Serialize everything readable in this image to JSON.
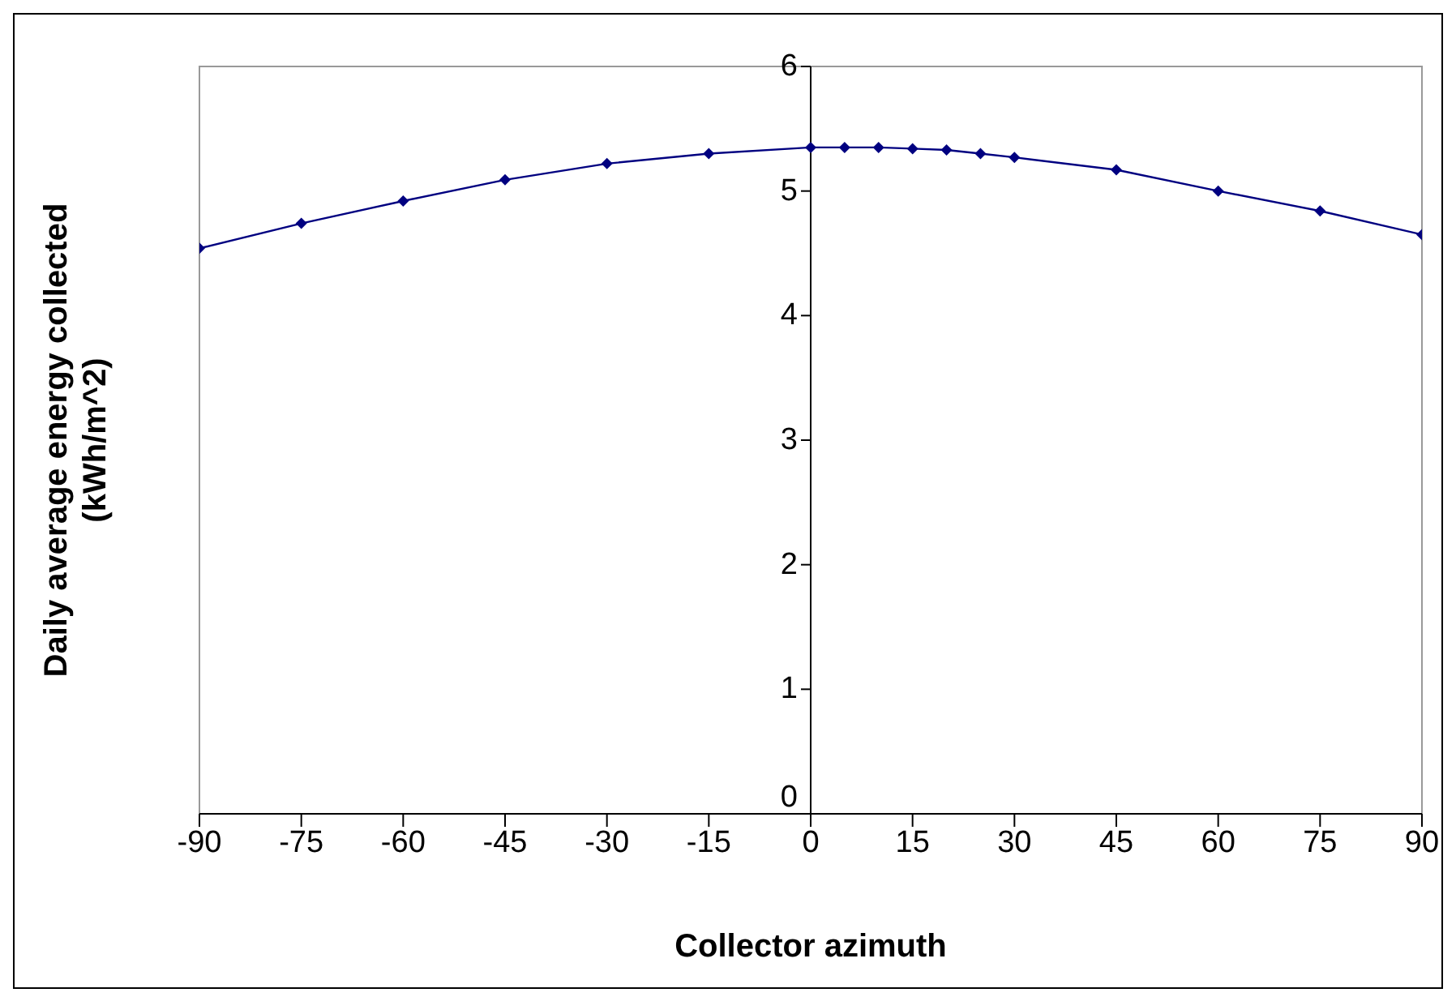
{
  "chart_data": {
    "type": "line",
    "xlabel": "Collector azimuth",
    "ylabel": "Daily average energy collected (kWh/m^2)",
    "x": [
      -90,
      -75,
      -60,
      -45,
      -30,
      -15,
      0,
      5,
      10,
      15,
      20,
      25,
      30,
      45,
      60,
      75,
      90
    ],
    "series": [
      {
        "color": "#000080",
        "values": [
          4.54,
          4.74,
          4.92,
          5.09,
          5.22,
          5.3,
          5.35,
          5.35,
          5.35,
          5.34,
          5.33,
          5.3,
          5.27,
          5.17,
          5.0,
          4.84,
          4.65
        ]
      }
    ],
    "xlim": [
      -90,
      90
    ],
    "xticks": [
      -90,
      -75,
      -60,
      -45,
      -30,
      -15,
      0,
      15,
      30,
      45,
      60,
      75,
      90
    ],
    "ylim": [
      0,
      6
    ],
    "yticks": [
      0,
      1,
      2,
      3,
      4,
      5,
      6
    ],
    "marker": "diamond",
    "grid": false,
    "legend": false
  }
}
